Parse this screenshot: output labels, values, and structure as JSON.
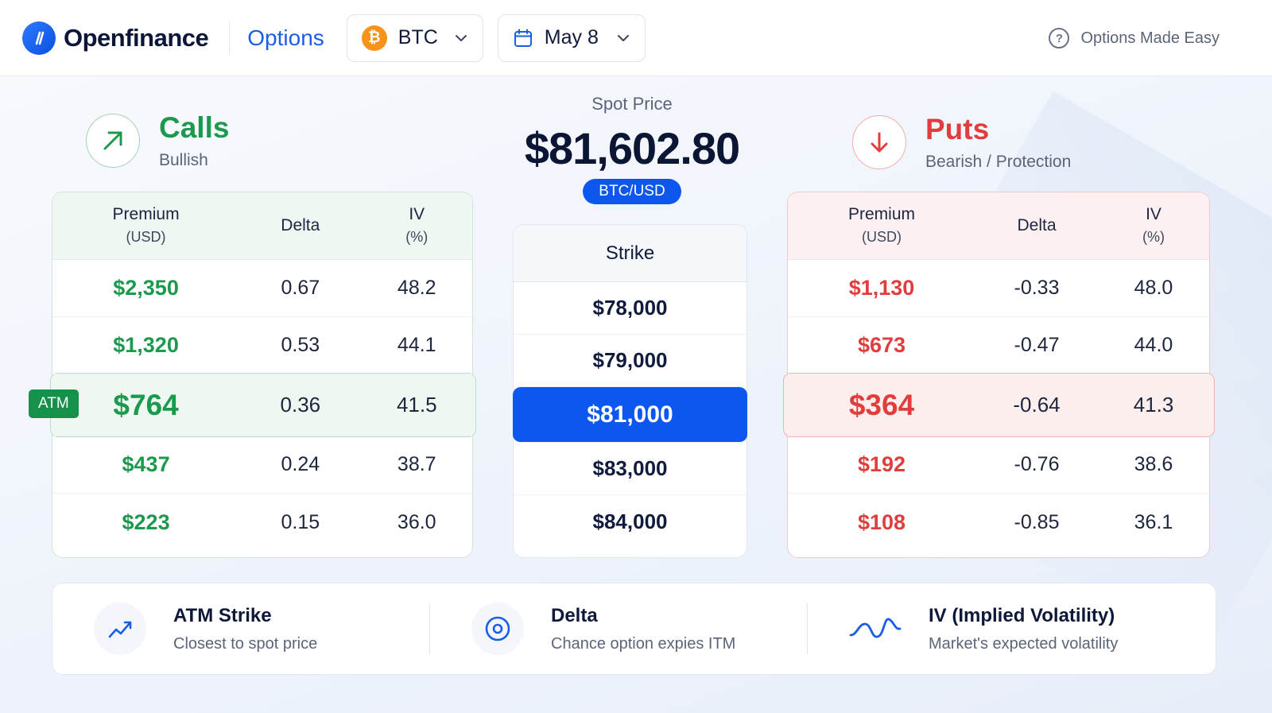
{
  "header": {
    "brand": "Openfinance",
    "nav_active": "Options",
    "asset": {
      "symbol_glyph": "₿",
      "label": "BTC"
    },
    "expiry": {
      "label": "May 8"
    },
    "help_text": "Options Made Easy"
  },
  "calls": {
    "title": "Calls",
    "subtitle": "Bullish",
    "columns": {
      "premium": "Premium",
      "premium_unit": "(USD)",
      "delta": "Delta",
      "iv": "IV",
      "iv_unit": "(%)"
    },
    "atm_tag": "ATM",
    "rows": [
      {
        "premium": "$2,350",
        "delta": "0.67",
        "iv": "48.2"
      },
      {
        "premium": "$1,320",
        "delta": "0.53",
        "iv": "44.1"
      },
      {
        "premium": "$764",
        "delta": "0.36",
        "iv": "41.5"
      },
      {
        "premium": "$437",
        "delta": "0.24",
        "iv": "38.7"
      },
      {
        "premium": "$223",
        "delta": "0.15",
        "iv": "36.0"
      }
    ]
  },
  "spot": {
    "label": "Spot Price",
    "price": "$81,602.80",
    "pair": "BTC/USD"
  },
  "strikes": {
    "header": "Strike",
    "rows": [
      "$78,000",
      "$79,000",
      "$81,000",
      "$83,000",
      "$84,000"
    ],
    "selected_index": 2
  },
  "puts": {
    "title": "Puts",
    "subtitle": "Bearish / Protection",
    "columns": {
      "premium": "Premium",
      "premium_unit": "(USD)",
      "delta": "Delta",
      "iv": "IV",
      "iv_unit": "(%)"
    },
    "rows": [
      {
        "premium": "$1,130",
        "delta": "-0.33",
        "iv": "48.0"
      },
      {
        "premium": "$673",
        "delta": "-0.47",
        "iv": "44.0"
      },
      {
        "premium": "$364",
        "delta": "-0.64",
        "iv": "41.3"
      },
      {
        "premium": "$192",
        "delta": "-0.76",
        "iv": "38.6"
      },
      {
        "premium": "$108",
        "delta": "-0.85",
        "iv": "36.1"
      }
    ]
  },
  "legend": [
    {
      "title": "ATM Strike",
      "desc": "Closest to spot price",
      "icon": "trend-up-icon"
    },
    {
      "title": "Delta",
      "desc": "Chance option expies ITM",
      "icon": "target-icon"
    },
    {
      "title": "IV (Implied Volatility)",
      "desc": "Market's expected volatility",
      "icon": "wave-icon"
    }
  ],
  "colors": {
    "brand_blue": "#0d57ee",
    "calls_green": "#1b9a4e",
    "puts_red": "#e23d3d",
    "btc_orange": "#f7931a"
  }
}
